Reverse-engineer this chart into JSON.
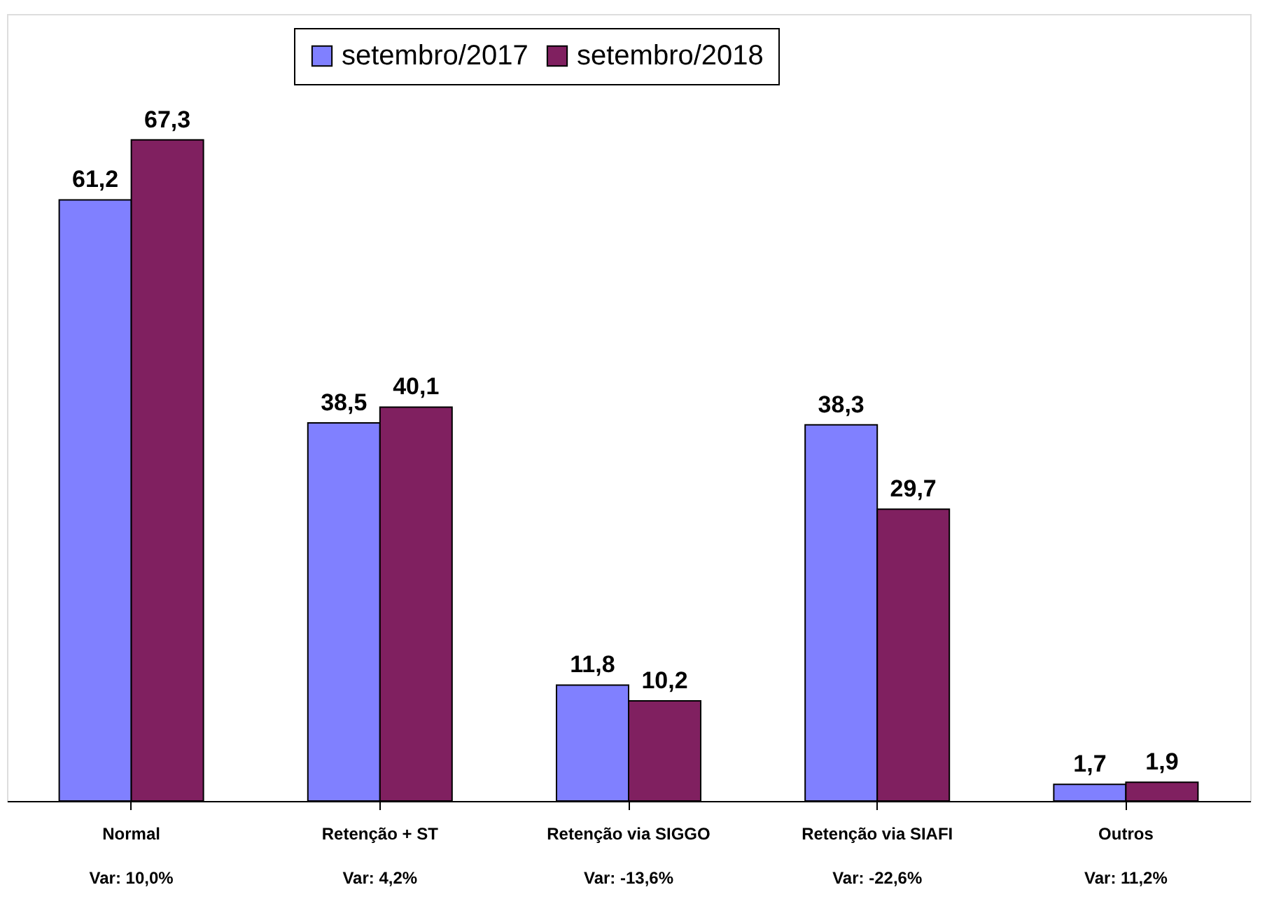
{
  "chart_data": {
    "type": "bar",
    "categories": [
      "Normal",
      "Retenção + ST",
      "Retenção  via SIGGO",
      "Retenção via SIAFI",
      "Outros"
    ],
    "series": [
      {
        "name": "setembro/2017",
        "color": "#8080ff",
        "values": [
          61.2,
          38.5,
          11.8,
          38.3,
          1.7
        ],
        "value_labels": [
          "61,2",
          "38,5",
          "11,8",
          "38,3",
          "1,7"
        ]
      },
      {
        "name": "setembro/2018",
        "color": "#802060",
        "values": [
          67.3,
          40.1,
          10.2,
          29.7,
          1.9
        ],
        "value_labels": [
          "67,3",
          "40,1",
          "10,2",
          "29,7",
          "1,9"
        ]
      }
    ],
    "tick_labels": "x",
    "grid": false,
    "legend": "top",
    "annotations": [
      "Var: 10,0%",
      "Var:  4,2%",
      "Var: -13,6%",
      "Var: -22,6%",
      "Var: 11,2%"
    ]
  }
}
